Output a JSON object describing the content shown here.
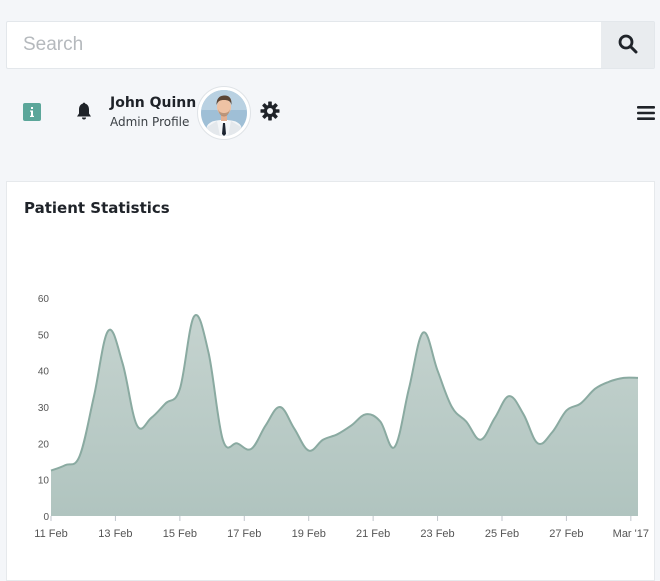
{
  "search": {
    "placeholder": "Search"
  },
  "icons": {
    "search": "search-icon",
    "info": "info-icon",
    "notifications": "bell-icon",
    "settings": "gear-icon",
    "menu": "hamburger-menu-icon"
  },
  "user": {
    "name": "John Quinn",
    "role": "Admin Profile"
  },
  "card": {
    "title": "Patient Statistics"
  },
  "colors": {
    "accent": "#5ba69a",
    "area_fill": "#b0c4bf",
    "area_stroke": "#8aaaa1"
  },
  "chart_data": {
    "type": "area",
    "title": "Patient Statistics",
    "xlabel": "",
    "ylabel": "",
    "ylim": [
      0,
      60
    ],
    "yticks": [
      "0",
      "10",
      "20",
      "30",
      "40",
      "50",
      "60"
    ],
    "xtick_labels": [
      "11 Feb",
      "13 Feb",
      "15 Feb",
      "17 Feb",
      "19 Feb",
      "21 Feb",
      "23 Feb",
      "25 Feb",
      "27 Feb",
      "Mar '17"
    ],
    "grid": false,
    "series": [
      {
        "x": [
          0,
          1,
          2,
          3,
          4,
          5,
          6,
          7,
          8,
          9,
          10,
          11,
          12,
          13,
          14,
          15,
          16,
          17,
          18,
          19,
          20,
          21,
          22,
          23,
          24,
          25,
          26,
          27,
          28,
          29,
          30,
          31,
          32,
          33,
          34,
          35,
          36,
          37,
          38,
          39,
          40,
          41
        ],
        "values": [
          12.5,
          14,
          16.5,
          33,
          51,
          42,
          25,
          27,
          31,
          35,
          55,
          45,
          21,
          20,
          18.5,
          25,
          30,
          24,
          18,
          21,
          22.5,
          25,
          28,
          26,
          19,
          35,
          50.5,
          40,
          30,
          26,
          21,
          27,
          33,
          28,
          20,
          23,
          29,
          31,
          35,
          37,
          38,
          38
        ]
      }
    ]
  }
}
